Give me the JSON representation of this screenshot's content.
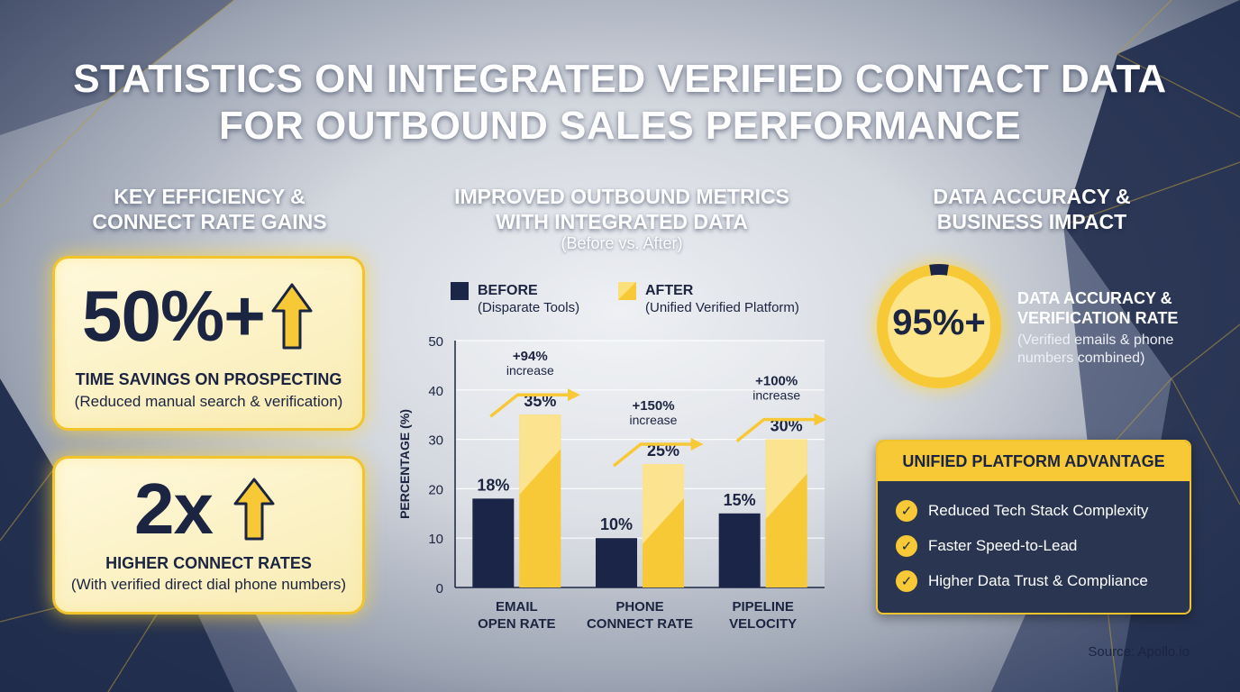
{
  "title_line1": "STATISTICS ON INTEGRATED VERIFIED CONTACT DATA",
  "title_line2": "FOR OUTBOUND SALES PERFORMANCE",
  "left": {
    "heading_line1": "KEY EFFICIENCY &",
    "heading_line2": "CONNECT RATE GAINS",
    "card1": {
      "value": "50%+",
      "label": "TIME SAVINGS ON PROSPECTING",
      "sub": "(Reduced manual search & verification)"
    },
    "card2": {
      "value": "2x",
      "label": "HIGHER CONNECT RATES",
      "sub": "(With verified direct dial phone numbers)"
    }
  },
  "center": {
    "heading_line1": "IMPROVED OUTBOUND METRICS",
    "heading_line2": "WITH INTEGRATED DATA",
    "subheading": "(Before vs. After)",
    "legend": [
      {
        "label": "BEFORE",
        "sub": "(Disparate Tools)",
        "color": "#1b2548"
      },
      {
        "label": "AFTER",
        "sub": "(Unified Verified Platform)",
        "color": "#f7c936"
      }
    ]
  },
  "chart_data": {
    "type": "bar",
    "categories": [
      [
        "EMAIL",
        "OPEN RATE"
      ],
      [
        "PHONE",
        "CONNECT RATE"
      ],
      [
        "PIPELINE",
        "VELOCITY"
      ]
    ],
    "series": [
      {
        "name": "BEFORE",
        "values": [
          18,
          10,
          15
        ],
        "labels": [
          "18%",
          "10%",
          "15%"
        ],
        "color": "#1b2548"
      },
      {
        "name": "AFTER",
        "values": [
          35,
          25,
          30
        ],
        "labels": [
          "35%",
          "25%",
          "30%"
        ],
        "color": "#f7c936"
      }
    ],
    "annotations": [
      {
        "value": "+94%",
        "text": "increase"
      },
      {
        "value": "+150%",
        "text": "increase"
      },
      {
        "value": "+100%",
        "text": "increase"
      }
    ],
    "ylabel": "PERCENTAGE (%)",
    "xlabel": "",
    "ylim": [
      0,
      50
    ],
    "yticks": [
      0,
      10,
      20,
      30,
      40,
      50
    ],
    "grid": true,
    "legend_position": "top"
  },
  "right": {
    "heading_line1": "DATA ACCURACY &",
    "heading_line2": "BUSINESS IMPACT",
    "accuracy": {
      "value": "95%+",
      "fraction": 0.95,
      "label_line1": "DATA ACCURACY &",
      "label_line2": "VERIFICATION RATE",
      "sub_line1": "(Verified emails & phone",
      "sub_line2": "numbers combined)"
    },
    "advantage": {
      "title": "UNIFIED PLATFORM ADVANTAGE",
      "items": [
        "Reduced Tech Stack Complexity",
        "Faster Speed-to-Lead",
        "Higher Data Trust & Compliance"
      ]
    }
  },
  "source": "Source: Apollo.io",
  "colors": {
    "navy": "#1b2548",
    "gold": "#f7c936",
    "accent_border": "#f2c42c"
  },
  "icons": [
    "arrow-up-icon",
    "check-icon"
  ]
}
